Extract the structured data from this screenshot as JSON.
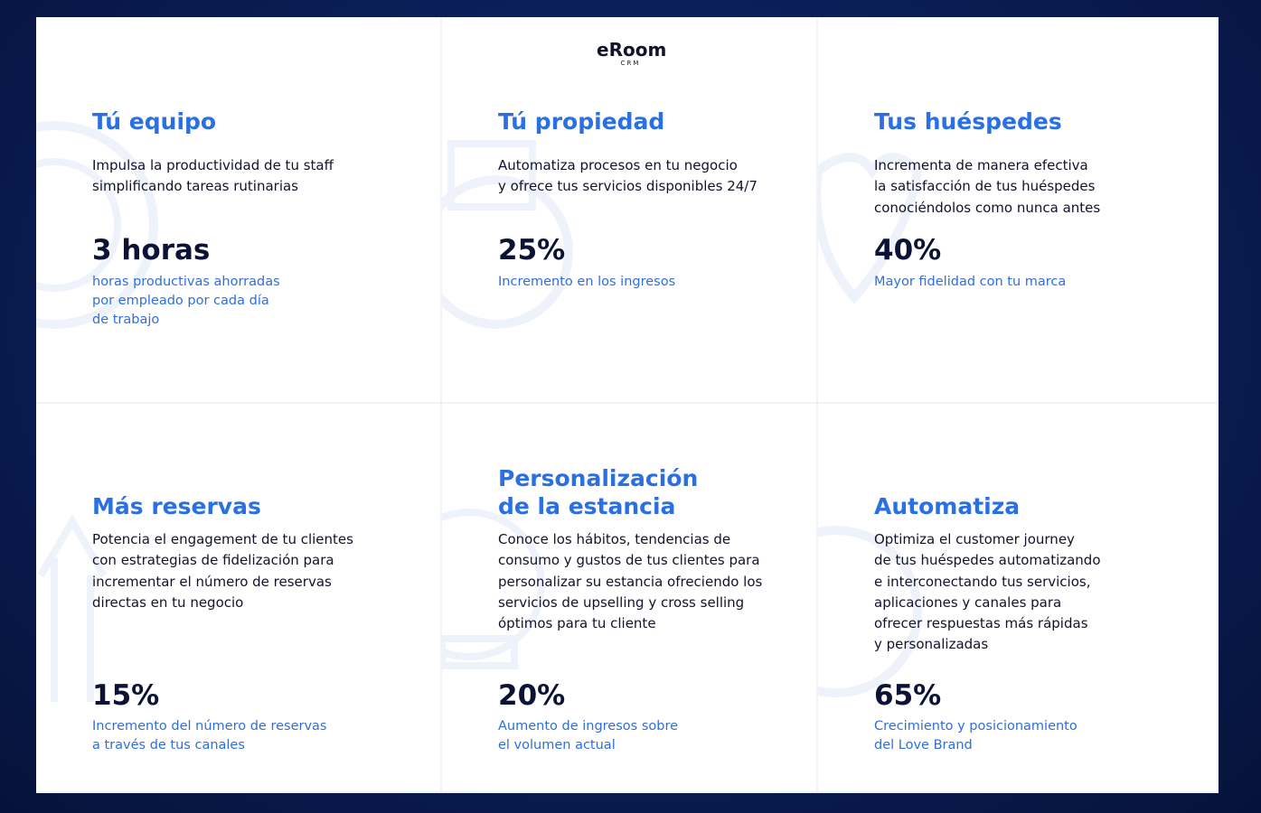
{
  "logo": {
    "name": "eRoom",
    "sub": "CRM"
  },
  "cards": [
    {
      "title": [
        "Tú equipo"
      ],
      "description": [
        "Impulsa la productividad de tu staff",
        "simplificando tareas rutinarias"
      ],
      "stat": "3 horas",
      "stat_label": [
        "horas productivas ahorradas",
        "por empleado por cada día",
        "de trabajo"
      ]
    },
    {
      "title": [
        "Tú propiedad"
      ],
      "description": [
        "Automatiza procesos en tu negocio",
        "y ofrece tus servicios disponibles 24/7"
      ],
      "stat": "25%",
      "stat_label": [
        "Incremento en los ingresos"
      ]
    },
    {
      "title": [
        "Tus huéspedes"
      ],
      "description": [
        "Incrementa de manera efectiva",
        "la satisfacción de tus huéspedes",
        "conociéndolos como nunca antes"
      ],
      "stat": "40%",
      "stat_label": [
        "Mayor fidelidad con tu marca"
      ]
    },
    {
      "title": [
        "Más reservas"
      ],
      "description": [
        "Potencia el engagement de tu clientes",
        "con estrategias de fidelización para",
        "incrementar el número de reservas",
        "directas en tu negocio"
      ],
      "stat": "15%",
      "stat_label": [
        "Incremento del número de reservas",
        "a través de tus canales"
      ]
    },
    {
      "title": [
        "Personalización",
        "de la estancia"
      ],
      "description": [
        "Conoce los hábitos, tendencias de",
        "consumo y gustos de tus clientes para",
        "personalizar su estancia ofreciendo los",
        "servicios de upselling y cross selling",
        "óptimos para tu cliente"
      ],
      "stat": "20%",
      "stat_label": [
        "Aumento de ingresos sobre",
        "el volumen actual"
      ]
    },
    {
      "title": [
        "Automatiza"
      ],
      "description": [
        "Optimiza el customer journey",
        "de tus huéspedes automatizando",
        "e interconectando tus servicios,",
        "aplicaciones y canales para",
        "ofrecer respuestas más rápidas",
        "y personalizadas"
      ],
      "stat": "65%",
      "stat_label": [
        "Crecimiento y posicionamiento",
        "del Love Brand"
      ]
    }
  ]
}
